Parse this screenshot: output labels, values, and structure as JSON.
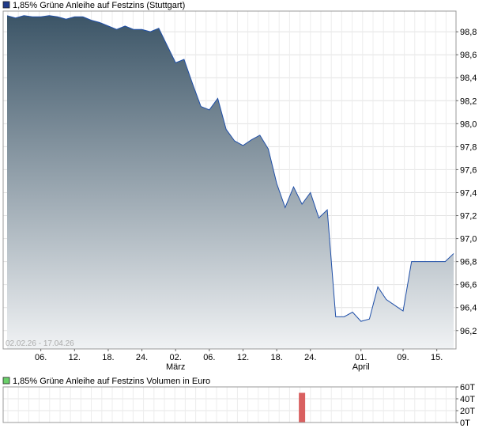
{
  "chart_data": [
    {
      "type": "area",
      "title": "1,85% Grüne Anleihe  auf Festzins (Stuttgart)",
      "legend_color": "#1f3a8a",
      "line_color": "#1f4fa8",
      "fill_top_color": "#3c5567",
      "fill_bottom_color": "#f0f2f4",
      "date_range_label": "02.02.26 - 17.04.26",
      "ylim": [
        96.04,
        98.98
      ],
      "y_ticks": [
        "96,2",
        "96,4",
        "96,6",
        "96,8",
        "97,0",
        "97,2",
        "97,4",
        "97,6",
        "97,8",
        "98,0",
        "98,2",
        "98,4",
        "98,6",
        "98,8"
      ],
      "x_tick_labels": [
        "06.",
        "12.",
        "18.",
        "24.",
        "02.",
        "06.",
        "12.",
        "18.",
        "24.",
        "01.",
        "09.",
        "15."
      ],
      "x_month_labels": [
        "März",
        "April"
      ],
      "x": [
        "02.02.",
        "03.02.",
        "04.02.",
        "05.02.",
        "06.02.",
        "09.02.",
        "10.02.",
        "11.02.",
        "12.02.",
        "13.02.",
        "16.02.",
        "17.02.",
        "18.02.",
        "19.02.",
        "20.02.",
        "23.02.",
        "24.02.",
        "25.02.",
        "26.02.",
        "27.02.",
        "02.03.",
        "03.03.",
        "04.03.",
        "05.03.",
        "06.03.",
        "09.03.",
        "10.03.",
        "11.03.",
        "12.03.",
        "13.03.",
        "16.03.",
        "17.03.",
        "18.03.",
        "19.03.",
        "20.03.",
        "23.03.",
        "24.03.",
        "25.03.",
        "26.03.",
        "27.03.",
        "30.03.",
        "31.03.",
        "01.04.",
        "02.04.",
        "06.04.",
        "07.04.",
        "08.04.",
        "09.04.",
        "10.04.",
        "13.04.",
        "14.04.",
        "15.04.",
        "16.04.",
        "17.04."
      ],
      "values": [
        98.94,
        98.92,
        98.94,
        98.93,
        98.93,
        98.94,
        98.93,
        98.91,
        98.93,
        98.93,
        98.9,
        98.88,
        98.85,
        98.82,
        98.85,
        98.82,
        98.82,
        98.8,
        98.83,
        98.68,
        98.53,
        98.56,
        98.35,
        98.15,
        98.12,
        98.22,
        97.95,
        97.85,
        97.81,
        97.86,
        97.9,
        97.78,
        97.48,
        97.27,
        97.45,
        97.3,
        97.4,
        97.18,
        97.25,
        96.32,
        96.32,
        96.36,
        96.28,
        96.3,
        96.58,
        96.47,
        96.42,
        96.37,
        96.8,
        96.8,
        96.8,
        96.8,
        96.8,
        96.87
      ]
    },
    {
      "type": "bar",
      "title": "1,85% Grüne Anleihe  auf Festzins Volumen in Euro",
      "legend_color": "#6ad06a",
      "bar_color": "#d96060",
      "ylim": [
        0,
        60
      ],
      "y_ticks": [
        "60T",
        "40T",
        "20T",
        "0T"
      ],
      "x": [
        "23.03."
      ],
      "values": [
        50
      ]
    }
  ]
}
